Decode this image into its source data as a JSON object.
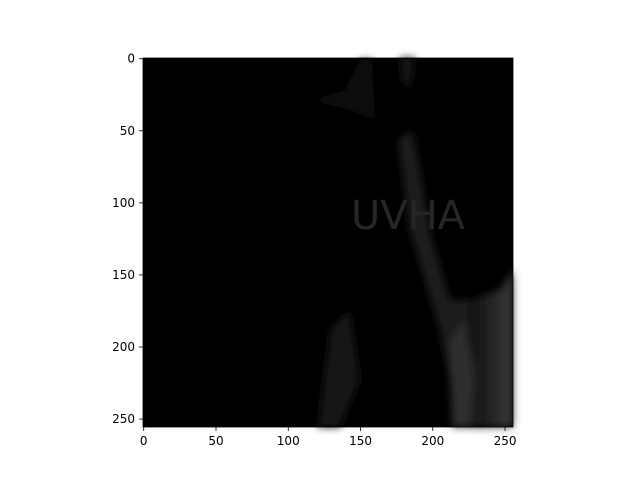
{
  "chart_data": {
    "type": "image",
    "annotation": "UVHA",
    "xlim": [
      -0.5,
      255.5
    ],
    "ylim": [
      255.5,
      -0.5
    ],
    "xticks": [
      0,
      50,
      100,
      150,
      200,
      250
    ],
    "yticks": [
      0,
      50,
      100,
      150,
      200,
      250
    ]
  }
}
